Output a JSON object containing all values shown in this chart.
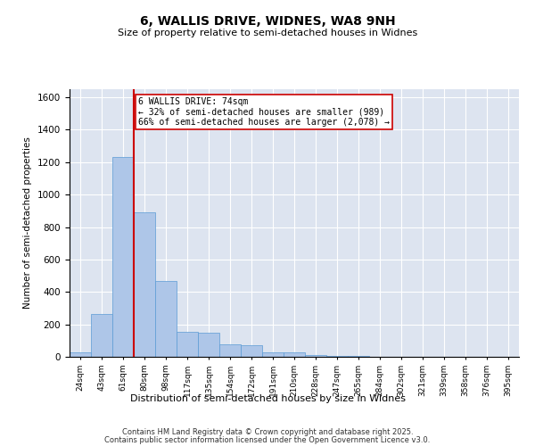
{
  "title": "6, WALLIS DRIVE, WIDNES, WA8 9NH",
  "subtitle": "Size of property relative to semi-detached houses in Widnes",
  "xlabel": "Distribution of semi-detached houses by size in Widnes",
  "ylabel": "Number of semi-detached properties",
  "bin_labels": [
    "24sqm",
    "43sqm",
    "61sqm",
    "80sqm",
    "98sqm",
    "117sqm",
    "135sqm",
    "154sqm",
    "172sqm",
    "191sqm",
    "210sqm",
    "228sqm",
    "247sqm",
    "265sqm",
    "284sqm",
    "302sqm",
    "321sqm",
    "339sqm",
    "358sqm",
    "376sqm",
    "395sqm"
  ],
  "bar_values": [
    25,
    265,
    1230,
    890,
    470,
    155,
    150,
    75,
    70,
    28,
    25,
    10,
    5,
    3,
    2,
    1,
    1,
    0,
    0,
    0,
    0
  ],
  "bar_color": "#aec6e8",
  "bar_edgecolor": "#5b9bd5",
  "vline_x": 2.5,
  "vline_color": "#cc0000",
  "annotation_text": "6 WALLIS DRIVE: 74sqm\n← 32% of semi-detached houses are smaller (989)\n66% of semi-detached houses are larger (2,078) →",
  "annotation_box_edgecolor": "#cc0000",
  "ylim": [
    0,
    1650
  ],
  "background_color": "#dde4f0",
  "footer_line1": "Contains HM Land Registry data © Crown copyright and database right 2025.",
  "footer_line2": "Contains public sector information licensed under the Open Government Licence v3.0."
}
